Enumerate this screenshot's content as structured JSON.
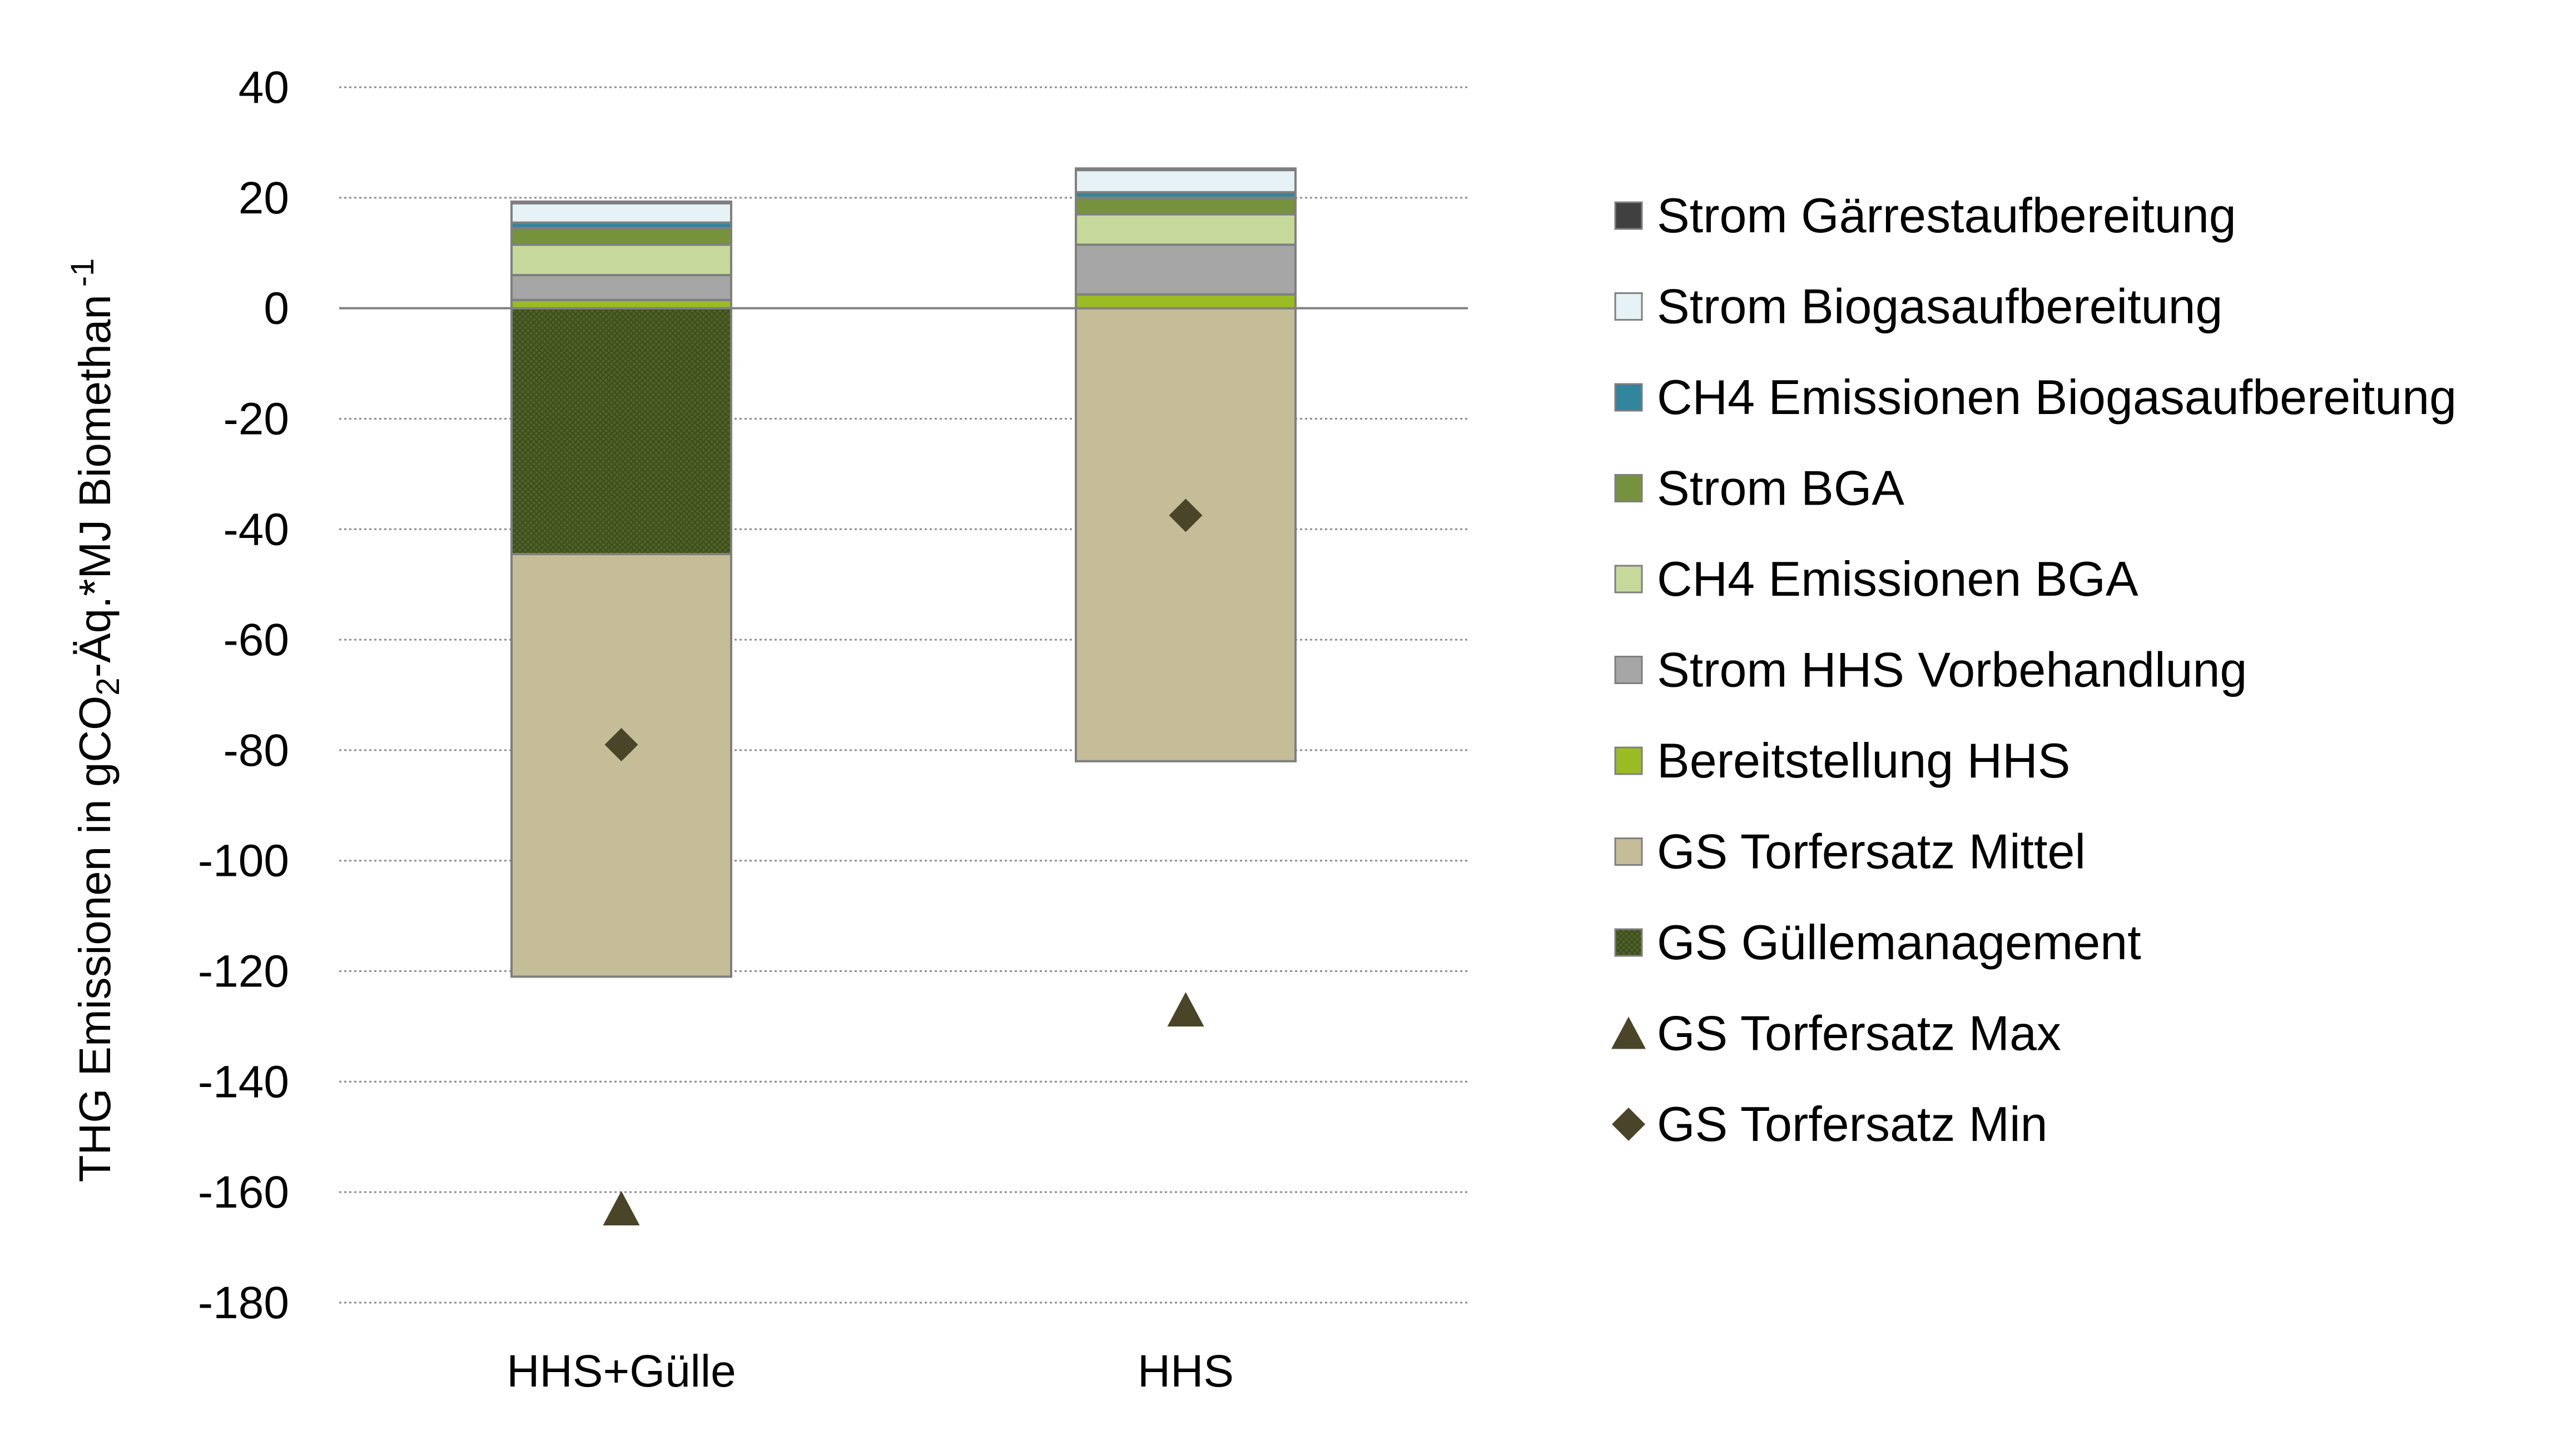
{
  "chart_data": {
    "type": "bar",
    "stacked": true,
    "categories": [
      "HHS+Gülle",
      "HHS"
    ],
    "ylabel_parts": {
      "pre": "THG Emissionen in gCO",
      "sub": "2",
      "mid": "-Äq.*MJ Biomethan",
      "sup": "-1"
    },
    "ylim": [
      -180,
      40
    ],
    "yticks": [
      40,
      20,
      0,
      -20,
      -40,
      -60,
      -80,
      -100,
      -120,
      -140,
      -160,
      -180
    ],
    "grid": true,
    "legend_position": "right",
    "series": [
      {
        "name": "GS Güllemanagement",
        "color": "#4f6228",
        "pattern": "crosshatch",
        "values": [
          -44.5,
          0
        ]
      },
      {
        "name": "GS Torfersatz Mittel",
        "color": "#c4bd97",
        "values": [
          -76.5,
          -82
        ]
      },
      {
        "name": "Bereitstellung HHS",
        "color": "#9bbb25",
        "values": [
          1.5,
          2.5
        ]
      },
      {
        "name": "Strom HHS Vorbehandlung",
        "color": "#a6a6a6",
        "values": [
          4.5,
          9
        ]
      },
      {
        "name": "CH4 Emissionen BGA",
        "color": "#c6d99a",
        "values": [
          5.5,
          5.5
        ]
      },
      {
        "name": "Strom BGA",
        "color": "#76923c",
        "values": [
          3,
          3
        ]
      },
      {
        "name": "CH4 Emissionen Biogasaufbereitung",
        "color": "#31859c",
        "values": [
          1,
          1
        ]
      },
      {
        "name": "Strom Biogasaufbereitung",
        "color": "#e6f2f5",
        "values": [
          3.5,
          4
        ]
      },
      {
        "name": "Strom Gärrestaufbereitung",
        "color": "#404040",
        "values": [
          0.3,
          0.3
        ]
      }
    ],
    "markers": [
      {
        "name": "GS Torfersatz Max",
        "shape": "triangle",
        "color": "#4a4428",
        "values": [
          -163,
          -127
        ]
      },
      {
        "name": "GS Torfersatz Min",
        "shape": "diamond",
        "color": "#4a4428",
        "values": [
          -79,
          -37.5
        ]
      }
    ],
    "legend_order": [
      "Strom Gärrestaufbereitung",
      "Strom Biogasaufbereitung",
      "CH4 Emissionen Biogasaufbereitung",
      "Strom BGA",
      "CH4 Emissionen BGA",
      "Strom HHS Vorbehandlung",
      "Bereitstellung HHS",
      "GS Torfersatz Mittel",
      "GS Güllemanagement",
      "GS Torfersatz Max",
      "GS Torfersatz Min"
    ]
  }
}
